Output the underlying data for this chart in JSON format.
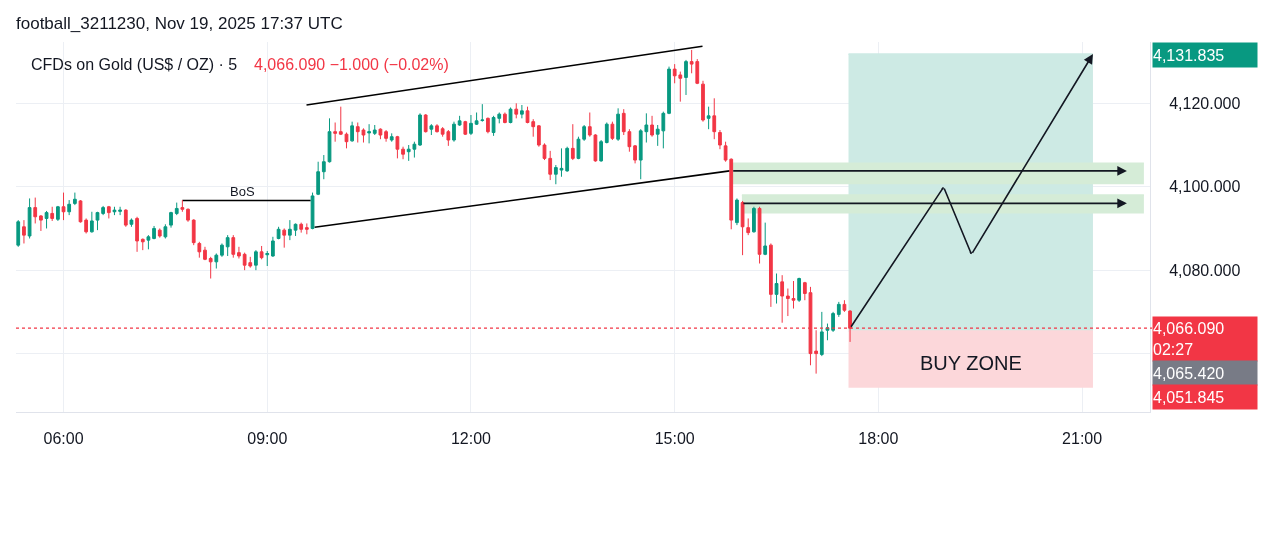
{
  "chart_data": {
    "type": "candlestick",
    "title": "football_3211230, Nov 19, 2025 17:37 UTC",
    "subtitle": "CFDs on Gold (US$ / OZ) · 5",
    "x": [
      5.333,
      5.417,
      5.5,
      5.583,
      5.667,
      5.75,
      5.833,
      5.917,
      6,
      6.083,
      6.167,
      6.25,
      6.333,
      6.417,
      6.5,
      6.583,
      6.667,
      6.75,
      6.833,
      6.917,
      7,
      7.083,
      7.167,
      7.25,
      7.333,
      7.417,
      7.5,
      7.583,
      7.667,
      7.75,
      7.833,
      7.917,
      8,
      8.083,
      8.167,
      8.25,
      8.333,
      8.417,
      8.5,
      8.583,
      8.667,
      8.75,
      8.833,
      8.917,
      9,
      9.083,
      9.167,
      9.25,
      9.333,
      9.417,
      9.5,
      9.583,
      9.667,
      9.75,
      9.833,
      9.917,
      10,
      10.083,
      10.167,
      10.25,
      10.333,
      10.417,
      10.5,
      10.583,
      10.667,
      10.75,
      10.833,
      10.917,
      11,
      11.083,
      11.167,
      11.25,
      11.333,
      11.417,
      11.5,
      11.583,
      11.667,
      11.75,
      11.833,
      11.917,
      12,
      12.083,
      12.167,
      12.25,
      12.333,
      12.417,
      12.5,
      12.583,
      12.667,
      12.75,
      12.833,
      12.917,
      13,
      13.083,
      13.167,
      13.25,
      13.333,
      13.417,
      13.5,
      13.583,
      13.667,
      13.75,
      13.833,
      13.917,
      14,
      14.083,
      14.167,
      14.25,
      14.333,
      14.417,
      14.5,
      14.583,
      14.667,
      14.75,
      14.833,
      14.917,
      15,
      15.083,
      15.167,
      15.25,
      15.333,
      15.417,
      15.5,
      15.583,
      15.667,
      15.75,
      15.833,
      15.917,
      16,
      16.083,
      16.167,
      16.25,
      16.333,
      16.417,
      16.5,
      16.583,
      16.667,
      16.75,
      16.833,
      16.917,
      17,
      17.083,
      17.167,
      17.25,
      17.333,
      17.417,
      17.5,
      17.583
    ],
    "ohlc": [
      [
        4086.0,
        4092.0,
        4085.6,
        4091.6
      ],
      [
        4090.4,
        4092.0,
        4086.4,
        4088.4
      ],
      [
        4088.2,
        4097.2,
        4087.6,
        4095.0
      ],
      [
        4095.0,
        4097.4,
        4091.2,
        4092.8
      ],
      [
        4093.0,
        4093.2,
        4089.4,
        4092.0
      ],
      [
        4092.4,
        4094.2,
        4090.0,
        4093.8
      ],
      [
        4093.6,
        4095.2,
        4091.8,
        4092.4
      ],
      [
        4092.2,
        4095.4,
        4091.8,
        4095.2
      ],
      [
        4095.2,
        4098.6,
        4092.0,
        4094.0
      ],
      [
        4094.0,
        4096.8,
        4093.2,
        4095.8
      ],
      [
        4096.0,
        4098.6,
        4095.6,
        4097.0
      ],
      [
        4096.6,
        4096.8,
        4091.4,
        4091.6
      ],
      [
        4092.0,
        4092.4,
        4088.8,
        4089.2
      ],
      [
        4089.2,
        4094.0,
        4089.0,
        4091.8
      ],
      [
        4092.0,
        4094.0,
        4089.6,
        4093.8
      ],
      [
        4093.6,
        4095.4,
        4093.2,
        4095.0
      ],
      [
        4095.2,
        4095.4,
        4092.4,
        4093.8
      ],
      [
        4094.0,
        4095.2,
        4093.2,
        4094.4
      ],
      [
        4094.1,
        4095.2,
        4093.2,
        4094.4
      ],
      [
        4094.4,
        4094.6,
        4090.4,
        4090.8
      ],
      [
        4091.0,
        4092.4,
        4090.4,
        4092.0
      ],
      [
        4092.4,
        4092.8,
        4084.4,
        4087.0
      ],
      [
        4087.4,
        4087.6,
        4084.8,
        4086.8
      ],
      [
        4087.2,
        4088.4,
        4085.0,
        4088.0
      ],
      [
        4087.6,
        4090.6,
        4087.4,
        4090.0
      ],
      [
        4089.6,
        4090.0,
        4087.8,
        4088.2
      ],
      [
        4088.0,
        4091.0,
        4087.6,
        4090.4
      ],
      [
        4090.8,
        4094.0,
        4090.2,
        4093.8
      ],
      [
        4093.6,
        4096.2,
        4093.2,
        4094.8
      ],
      [
        4095.0,
        4096.8,
        4094.0,
        4094.6
      ],
      [
        4094.6,
        4094.8,
        4091.6,
        4092.0
      ],
      [
        4092.0,
        4092.2,
        4086.0,
        4086.6
      ],
      [
        4086.4,
        4086.8,
        4083.0,
        4084.4
      ],
      [
        4084.8,
        4085.6,
        4082.4,
        4082.6
      ],
      [
        4082.8,
        4083.2,
        4078.0,
        4082.0
      ],
      [
        4082.0,
        4084.0,
        4080.4,
        4083.6
      ],
      [
        4083.6,
        4086.4,
        4083.2,
        4086.0
      ],
      [
        4085.6,
        4088.4,
        4083.4,
        4087.8
      ],
      [
        4087.8,
        4088.4,
        4083.0,
        4083.8
      ],
      [
        4084.2,
        4085.6,
        4082.8,
        4083.4
      ],
      [
        4083.8,
        4084.2,
        4080.0,
        4081.2
      ],
      [
        4081.8,
        4083.2,
        4080.6,
        4081.0
      ],
      [
        4081.2,
        4084.8,
        4080.0,
        4084.4
      ],
      [
        4084.4,
        4085.8,
        4082.6,
        4083.0
      ],
      [
        4083.7,
        4084.6,
        4081.0,
        4084.0
      ],
      [
        4083.4,
        4088.0,
        4083.2,
        4087.0
      ],
      [
        4087.6,
        4090.4,
        4087.4,
        4089.8
      ],
      [
        4089.6,
        4090.0,
        4085.4,
        4088.4
      ],
      [
        4088.4,
        4092.0,
        4087.2,
        4089.8
      ],
      [
        4089.6,
        4091.2,
        4088.2,
        4091.0
      ],
      [
        4091.0,
        4091.4,
        4089.0,
        4089.8
      ],
      [
        4090.2,
        4091.2,
        4088.6,
        4089.8
      ],
      [
        4090.0,
        4098.6,
        4089.8,
        4097.8
      ],
      [
        4098.2,
        4106.0,
        4098.0,
        4103.6
      ],
      [
        4103.6,
        4107.6,
        4101.8,
        4106.0
      ],
      [
        4106.0,
        4116.4,
        4105.8,
        4113.2
      ],
      [
        4113.2,
        4115.4,
        4110.8,
        4112.8
      ],
      [
        4113.2,
        4119.2,
        4112.4,
        4112.6
      ],
      [
        4112.6,
        4113.0,
        4109.2,
        4110.8
      ],
      [
        4111.0,
        4115.6,
        4110.8,
        4114.6
      ],
      [
        4114.4,
        4115.4,
        4110.6,
        4113.2
      ],
      [
        4113.6,
        4114.0,
        4110.6,
        4112.4
      ],
      [
        4112.9,
        4115.0,
        4110.4,
        4113.2
      ],
      [
        4112.8,
        4114.8,
        4112.4,
        4113.6
      ],
      [
        4113.8,
        4114.0,
        4111.4,
        4112.4
      ],
      [
        4113.2,
        4113.6,
        4110.8,
        4111.6
      ],
      [
        4111.2,
        4112.8,
        4110.8,
        4112.0
      ],
      [
        4112.0,
        4112.2,
        4106.8,
        4109.0
      ],
      [
        4109.0,
        4109.6,
        4106.6,
        4107.8
      ],
      [
        4108.4,
        4110.0,
        4106.2,
        4109.0
      ],
      [
        4109.0,
        4110.8,
        4107.0,
        4110.2
      ],
      [
        4110.0,
        4117.6,
        4109.8,
        4117.2
      ],
      [
        4117.2,
        4117.4,
        4113.0,
        4113.2
      ],
      [
        4113.8,
        4115.0,
        4112.4,
        4114.6
      ],
      [
        4114.6,
        4115.0,
        4113.0,
        4113.2
      ],
      [
        4113.9,
        4114.3,
        4112.0,
        4112.6
      ],
      [
        4113.2,
        4113.6,
        4109.8,
        4111.2
      ],
      [
        4111.2,
        4115.6,
        4110.8,
        4115.0
      ],
      [
        4114.8,
        4117.0,
        4114.6,
        4115.8
      ],
      [
        4115.6,
        4115.8,
        4112.4,
        4112.6
      ],
      [
        4112.8,
        4117.2,
        4112.4,
        4115.2
      ],
      [
        4115.0,
        4117.8,
        4114.8,
        4115.8
      ],
      [
        4115.9,
        4119.8,
        4115.6,
        4116.0
      ],
      [
        4116.4,
        4116.6,
        4112.8,
        4113.2
      ],
      [
        4113.0,
        4117.0,
        4112.2,
        4116.6
      ],
      [
        4116.4,
        4117.8,
        4115.2,
        4117.4
      ],
      [
        4117.4,
        4117.8,
        4115.2,
        4115.4
      ],
      [
        4115.4,
        4119.0,
        4115.2,
        4118.6
      ],
      [
        4118.6,
        4120.0,
        4116.4,
        4117.4
      ],
      [
        4117.4,
        4119.6,
        4116.4,
        4118.2
      ],
      [
        4118.2,
        4119.2,
        4115.2,
        4115.4
      ],
      [
        4115.6,
        4116.2,
        4112.0,
        4114.4
      ],
      [
        4114.6,
        4114.8,
        4109.6,
        4110.0
      ],
      [
        4110.0,
        4110.4,
        4106.4,
        4106.8
      ],
      [
        4106.8,
        4108.6,
        4101.6,
        4103.0
      ],
      [
        4103.0,
        4105.2,
        4100.6,
        4104.6
      ],
      [
        4104.0,
        4109.2,
        4102.4,
        4104.4
      ],
      [
        4103.8,
        4109.6,
        4103.6,
        4109.2
      ],
      [
        4109.2,
        4115.0,
        4106.4,
        4106.8
      ],
      [
        4106.8,
        4112.0,
        4106.6,
        4111.4
      ],
      [
        4111.4,
        4114.8,
        4111.0,
        4114.4
      ],
      [
        4114.4,
        4117.8,
        4112.0,
        4112.4
      ],
      [
        4112.4,
        4112.6,
        4106.0,
        4106.2
      ],
      [
        4106.2,
        4111.2,
        4106.0,
        4110.8
      ],
      [
        4110.6,
        4115.4,
        4110.4,
        4115.0
      ],
      [
        4115.0,
        4115.6,
        4111.2,
        4111.6
      ],
      [
        4111.4,
        4118.8,
        4111.0,
        4117.4
      ],
      [
        4117.6,
        4118.6,
        4112.4,
        4113.2
      ],
      [
        4113.2,
        4113.8,
        4108.4,
        4109.6
      ],
      [
        4109.8,
        4110.0,
        4105.6,
        4106.4
      ],
      [
        4106.4,
        4113.8,
        4101.8,
        4113.4
      ],
      [
        4113.2,
        4117.6,
        4110.6,
        4114.8
      ],
      [
        4114.8,
        4117.0,
        4112.0,
        4112.4
      ],
      [
        4112.6,
        4114.8,
        4109.8,
        4113.8
      ],
      [
        4113.4,
        4118.0,
        4109.2,
        4117.6
      ],
      [
        4117.6,
        4128.8,
        4117.4,
        4128.2
      ],
      [
        4128.2,
        4129.4,
        4124.8,
        4126.6
      ],
      [
        4126.8,
        4127.6,
        4120.4,
        4126.0
      ],
      [
        4126.2,
        4130.4,
        4122.0,
        4130.0
      ],
      [
        4130.0,
        4132.8,
        4127.2,
        4129.4
      ],
      [
        4130.0,
        4130.6,
        4124.6,
        4124.8
      ],
      [
        4124.6,
        4125.4,
        4115.6,
        4116.0
      ],
      [
        4116.4,
        4119.2,
        4113.8,
        4117.0
      ],
      [
        4117.0,
        4121.2,
        4111.4,
        4113.2
      ],
      [
        4113.0,
        4113.6,
        4109.0,
        4110.0
      ],
      [
        4109.8,
        4110.8,
        4106.0,
        4106.4
      ],
      [
        4106.6,
        4106.8,
        4089.8,
        4092.0
      ],
      [
        4091.4,
        4097.2,
        4090.8,
        4096.8
      ],
      [
        4096.2,
        4096.6,
        4083.6,
        4090.4
      ],
      [
        4090.2,
        4092.4,
        4088.4,
        4089.0
      ],
      [
        4089.2,
        4095.2,
        4089.0,
        4094.8
      ],
      [
        4094.8,
        4095.2,
        4081.6,
        4083.8
      ],
      [
        4083.8,
        4091.4,
        4083.6,
        4085.8
      ],
      [
        4086.0,
        4086.4,
        4071.2,
        4074.2
      ],
      [
        4074.2,
        4079.2,
        4072.0,
        4076.8
      ],
      [
        4077.2,
        4078.8,
        4067.4,
        4073.8
      ],
      [
        4073.8,
        4075.6,
        4069.0,
        4073.2
      ],
      [
        4073.2,
        4077.4,
        4070.8,
        4072.8
      ],
      [
        4072.8,
        4078.2,
        4072.4,
        4078.0
      ],
      [
        4077.0,
        4077.2,
        4072.8,
        4074.4
      ],
      [
        4074.6,
        4076.0,
        4057.2,
        4060.0
      ],
      [
        4060.6,
        4065.6,
        4055.2,
        4060.0
      ],
      [
        4059.8,
        4070.0,
        4059.4,
        4065.2
      ],
      [
        4065.6,
        4067.2,
        4063.2,
        4066.2
      ],
      [
        4065.6,
        4070.0,
        4065.2,
        4069.6
      ],
      [
        4069.4,
        4072.4,
        4068.8,
        4071.8
      ],
      [
        4071.8,
        4072.8,
        4070.0,
        4070.4
      ],
      [
        4070.2,
        4070.4,
        4062.8,
        4066.09
      ]
    ],
    "series": [
      {
        "type": "line",
        "x": [
          17.56,
          21.16
        ],
        "values": [
          4131.8,
          4131.8
        ],
        "lower": [
          4065.4,
          4065.4
        ],
        "upper": [
          4131.8,
          4131.8
        ],
        "color": "#cdeae4"
      },
      {
        "type": "line",
        "x": [
          17.56,
          21.16
        ],
        "values": [
          4065.4,
          4065.4
        ],
        "lower": [
          4051.8,
          4051.8
        ],
        "upper": [
          4065.4,
          4065.4
        ],
        "color": "#fcd7da"
      },
      {
        "type": "line",
        "x": [
          15.84,
          21.91
        ],
        "values": [
          4105.6,
          4105.6
        ],
        "lower": [
          4100.6,
          4100.6
        ],
        "upper": [
          4105.6,
          4105.6
        ],
        "color": "#d5ecd7"
      },
      {
        "type": "line",
        "x": [
          15.99,
          21.91
        ],
        "values": [
          4098.0,
          4098.0
        ],
        "lower": [
          4093.6,
          4093.6
        ],
        "upper": [
          4098.0,
          4098.0
        ],
        "color": "#d5ecd7"
      },
      {
        "type": "line",
        "x": [
          9.578,
          15.41
        ],
        "values": [
          4119.6,
          4133.7
        ],
        "color": "#000000"
      },
      {
        "type": "line",
        "x": [
          9.696,
          15.81
        ],
        "values": [
          4090.3,
          4103.8
        ],
        "color": "#000000"
      },
      {
        "type": "line",
        "x": [
          7.75,
          9.64
        ],
        "values": [
          4096.7,
          4096.7
        ],
        "color": "#000000"
      }
    ],
    "ref_lines": [
      {
        "axis": "y",
        "value": 4066.09,
        "label": "4,066.090\n02:27",
        "color": "#f23645",
        "line_style": "dotted"
      }
    ],
    "annotations": [
      "4,066.090 −1.000 (−0.02%)",
      "BUY ZONE",
      "4,131.835",
      "4,065.420",
      "4,051.845",
      {
        "text": "BoS",
        "x": 8.63,
        "y": 4096.7
      }
    ],
    "xlim": [
      5.3,
      22.0
    ],
    "xticks": [
      {
        "value": 6,
        "label": "06:00"
      },
      {
        "value": 9,
        "label": "09:00"
      },
      {
        "value": 12,
        "label": "12:00"
      },
      {
        "value": 15,
        "label": "15:00"
      },
      {
        "value": 18,
        "label": "18:00"
      },
      {
        "value": 21,
        "label": "21:00"
      }
    ],
    "ylim": [
      4046.0,
      4134.7
    ],
    "yticks": [
      {
        "value": 4060,
        "label": null
      },
      {
        "value": 4080,
        "label": "4,080.000"
      },
      {
        "value": 4100,
        "label": "4,100.000"
      },
      {
        "value": 4120,
        "label": "4,120.000"
      }
    ],
    "grid": true
  }
}
